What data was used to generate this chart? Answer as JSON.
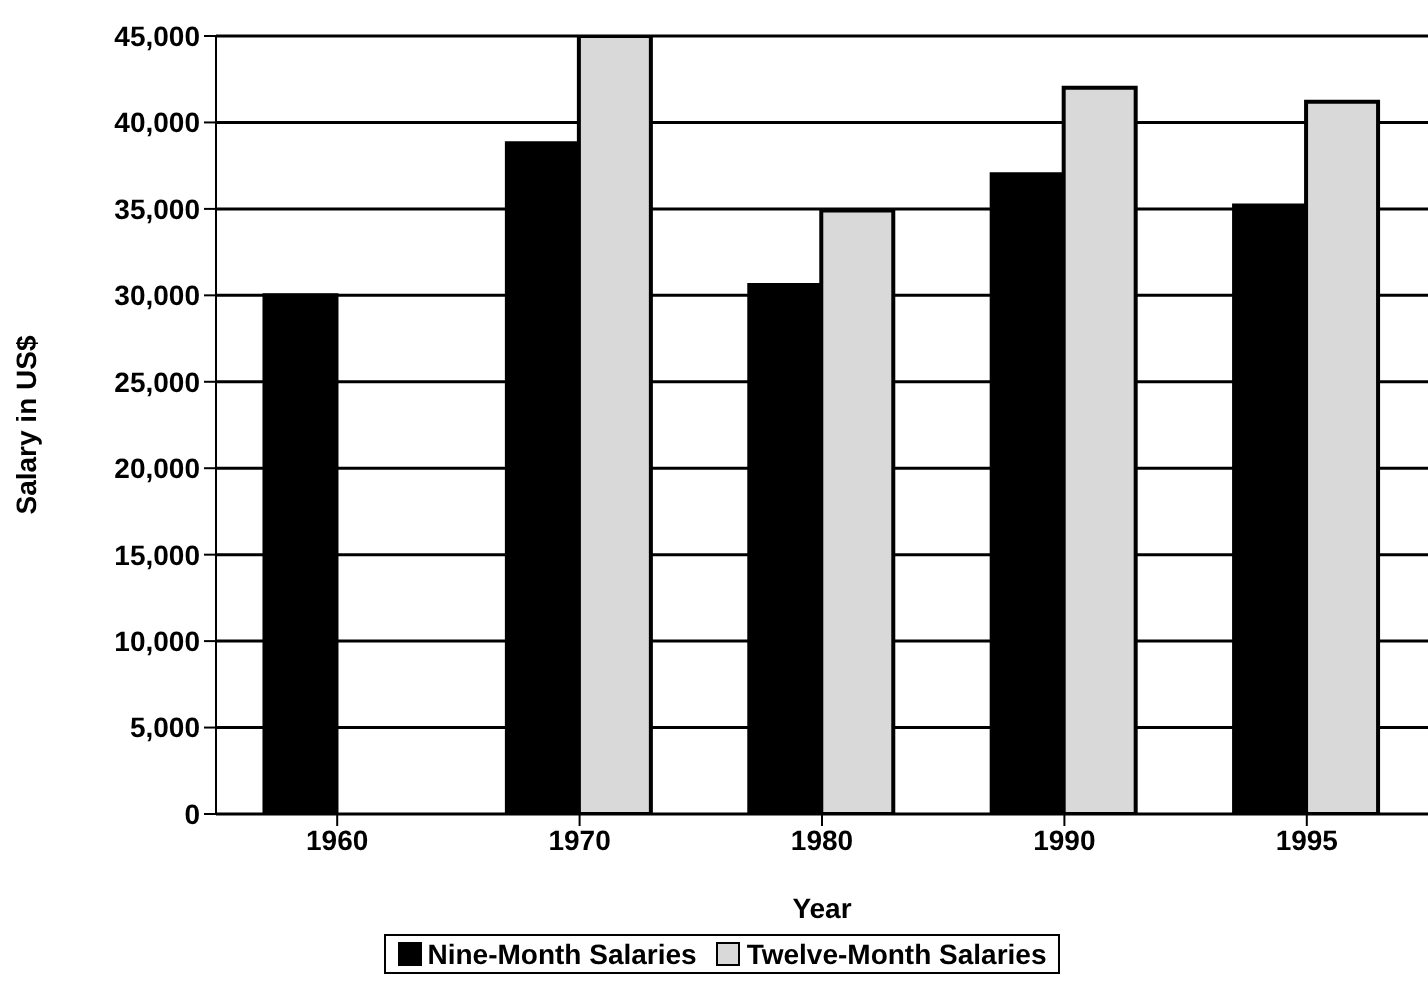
{
  "chart_data": {
    "type": "bar",
    "xlabel": "Year",
    "ylabel": "Salary in US$",
    "categories": [
      "1960",
      "1970",
      "1980",
      "1990",
      "1995"
    ],
    "series": [
      {
        "name": "Nine-Month Salaries",
        "color": "#000000",
        "values": [
          30000,
          38800,
          30600,
          37000,
          35200
        ]
      },
      {
        "name": "Twelve-Month Salaries",
        "color": "#d9d9d9",
        "values": [
          null,
          45000,
          34900,
          42000,
          41200
        ]
      }
    ],
    "ylim": [
      0,
      45000
    ],
    "yticks": [
      0,
      {
        "value": 5000,
        "label": "5,000"
      },
      {
        "value": 10000,
        "label": "10,000"
      },
      {
        "value": 15000,
        "label": "15,000"
      },
      {
        "value": 20000,
        "label": "20,000"
      },
      {
        "value": 25000,
        "label": "25,000"
      },
      {
        "value": 30000,
        "label": "30,000"
      },
      {
        "value": 35000,
        "label": "35,000"
      },
      {
        "value": 40000,
        "label": "40,000"
      },
      {
        "value": 45000,
        "label": "45,000"
      }
    ],
    "grid": "y",
    "legend": "bottom"
  }
}
